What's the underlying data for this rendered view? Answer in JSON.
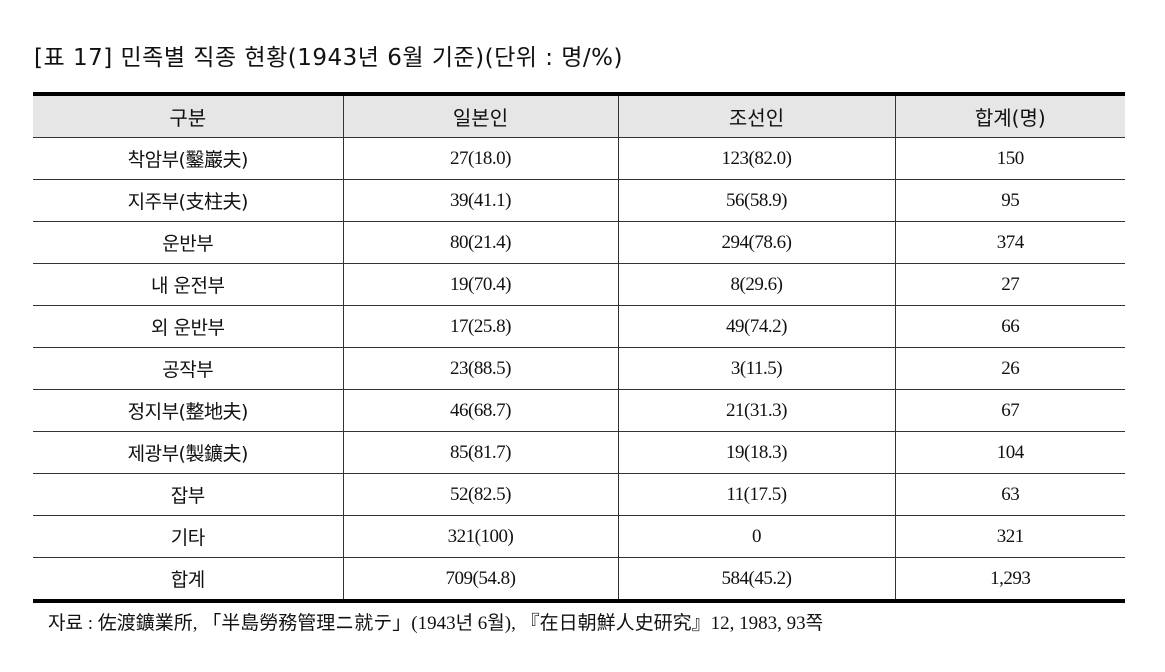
{
  "title": "[표 17] 민족별 직종 현황(1943년 6월 기준)(단위 : 명/%)",
  "table": {
    "headers": [
      "구분",
      "일본인",
      "조선인",
      "합계(명)"
    ],
    "rows": [
      [
        "착암부(鑿巖夫)",
        "27(18.0)",
        "123(82.0)",
        "150"
      ],
      [
        "지주부(支柱夫)",
        "39(41.1)",
        "56(58.9)",
        "95"
      ],
      [
        "운반부",
        "80(21.4)",
        "294(78.6)",
        "374"
      ],
      [
        "내 운전부",
        "19(70.4)",
        "8(29.6)",
        "27"
      ],
      [
        "외 운반부",
        "17(25.8)",
        "49(74.2)",
        "66"
      ],
      [
        "공작부",
        "23(88.5)",
        "3(11.5)",
        "26"
      ],
      [
        "정지부(整地夫)",
        "46(68.7)",
        "21(31.3)",
        "67"
      ],
      [
        "제광부(製鑛夫)",
        "85(81.7)",
        "19(18.3)",
        "104"
      ],
      [
        "잡부",
        "52(82.5)",
        "11(17.5)",
        "63"
      ],
      [
        "기타",
        "321(100)",
        "0",
        "321"
      ],
      [
        "합계",
        "709(54.8)",
        "584(45.2)",
        "1,293"
      ]
    ]
  },
  "source": "자료 : 佐渡鑛業所, 「半島勞務管理ニ就テ」(1943년 6월), 『在日朝鮮人史研究』12, 1983, 93쪽"
}
